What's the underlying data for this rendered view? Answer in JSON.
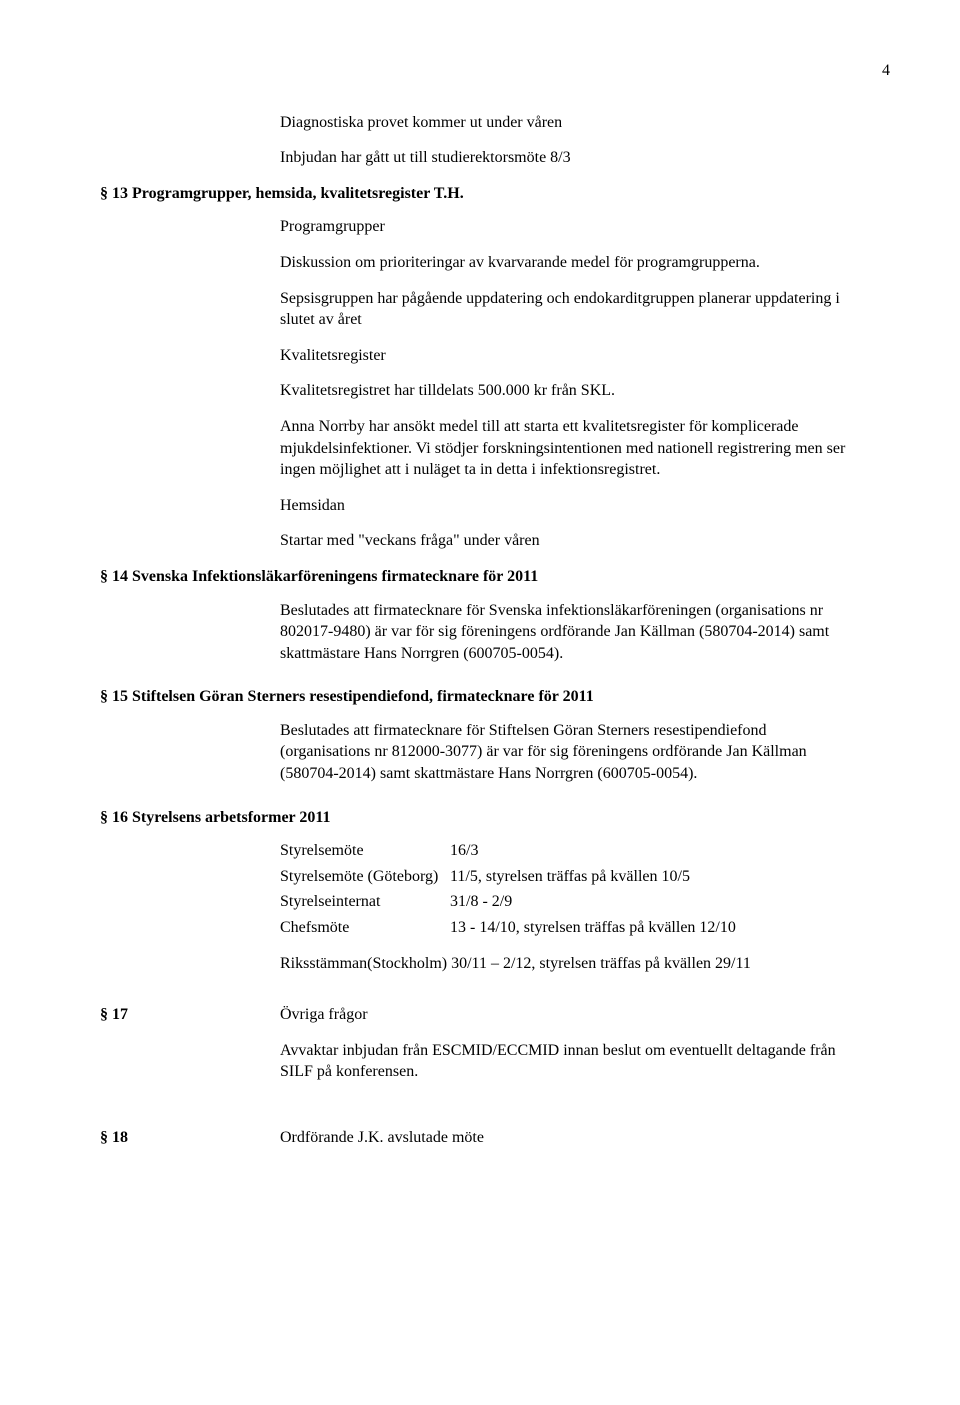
{
  "page_number": "4",
  "top": {
    "line1": "Diagnostiska provet kommer ut under våren",
    "line2": "Inbjudan har gått ut till studierektorsmöte 8/3"
  },
  "s13": {
    "heading": "§ 13 Programgrupper, hemsida, kvalitetsregister T.H.",
    "p1": "Programgrupper",
    "p2": "Diskussion om prioriteringar av kvarvarande medel för programgrupperna.",
    "p3": "Sepsisgruppen har pågående uppdatering och endokarditgruppen planerar uppdatering i slutet av året",
    "p4": "Kvalitetsregister",
    "p5": "Kvalitetsregistret har tilldelats 500.000 kr från SKL.",
    "p6": "Anna Norrby har ansökt medel till att starta ett kvalitetsregister för komplicerade mjukdelsinfektioner. Vi stödjer forskningsintentionen med nationell registrering men ser ingen möjlighet att i nuläget ta in detta i infektionsregistret.",
    "p7": "Hemsidan",
    "p8": "Startar med \"veckans fråga\" under våren"
  },
  "s14": {
    "heading": "§ 14 Svenska Infektionsläkarföreningens firmatecknare för 2011",
    "p1": "Beslutades att firmatecknare för Svenska infektionsläkarföreningen (organisations nr 802017-9480) är var för sig föreningens ordförande Jan Källman (580704-2014) samt skattmästare Hans Norrgren (600705-0054)."
  },
  "s15": {
    "heading": "§ 15 Stiftelsen Göran Sterners resestipendiefond, firmatecknare för 2011",
    "p1": "Beslutades att firmatecknare för Stiftelsen Göran Sterners resestipendiefond (organisations nr 812000-3077) är var för sig föreningens ordförande Jan Källman (580704-2014) samt skattmästare Hans Norrgren (600705-0054)."
  },
  "s16": {
    "heading": "§ 16 Styrelsens arbetsformer 2011",
    "rows": [
      {
        "l": "Styrelsemöte",
        "r": "16/3"
      },
      {
        "l": "Styrelsemöte (Göteborg)",
        "r": "11/5, styrelsen träffas på kvällen 10/5"
      },
      {
        "l": "Styrelseinternat",
        "r": "31/8 - 2/9"
      },
      {
        "l": "Chefsmöte",
        "r": "13 - 14/10, styrelsen träffas på kvällen 12/10"
      }
    ],
    "last": "Riksstämman(Stockholm) 30/11 – 2/12, styrelsen träffas på kvällen 29/11"
  },
  "s17": {
    "label": "§ 17",
    "title": "Övriga frågor",
    "p1": "Avvaktar inbjudan från ESCMID/ECCMID innan beslut om eventuellt deltagande från SILF på konferensen."
  },
  "s18": {
    "label": "§ 18",
    "body": "Ordförande J.K. avslutade möte"
  }
}
